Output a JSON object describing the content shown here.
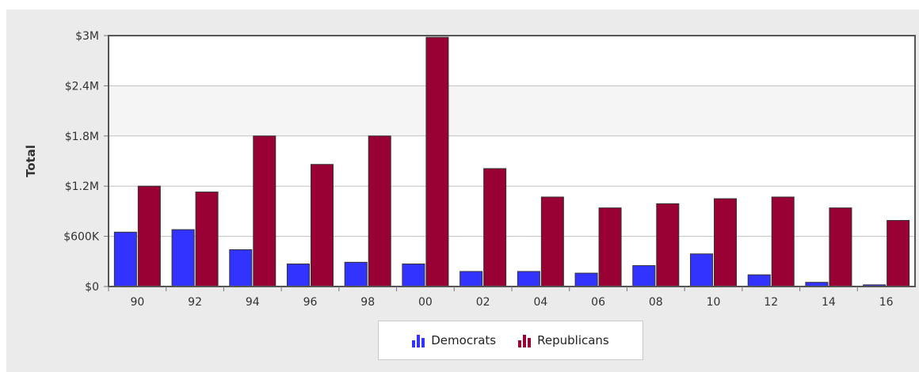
{
  "chart_data": {
    "type": "bar",
    "ylabel": "Total",
    "xlabel": "",
    "categories": [
      "90",
      "92",
      "94",
      "96",
      "98",
      "00",
      "02",
      "04",
      "06",
      "08",
      "10",
      "12",
      "14",
      "16"
    ],
    "ylim": [
      0,
      3000000
    ],
    "yticks": [
      {
        "value": 0,
        "label": "$0"
      },
      {
        "value": 600000,
        "label": "$600K"
      },
      {
        "value": 1200000,
        "label": "$1.2M"
      },
      {
        "value": 1800000,
        "label": "$1.8M"
      },
      {
        "value": 2400000,
        "label": "$2.4M"
      },
      {
        "value": 3000000,
        "label": "$3M"
      }
    ],
    "series": [
      {
        "name": "Democrats",
        "color": "#3333ff",
        "values": [
          650000,
          680000,
          440000,
          270000,
          290000,
          270000,
          180000,
          180000,
          160000,
          250000,
          390000,
          140000,
          50000,
          20000
        ]
      },
      {
        "name": "Republicans",
        "color": "#990033",
        "values": [
          1200000,
          1130000,
          1800000,
          1460000,
          1800000,
          2980000,
          1410000,
          1070000,
          940000,
          990000,
          1050000,
          1070000,
          940000,
          790000
        ]
      }
    ],
    "grid": true,
    "legend_position": "bottom-center"
  },
  "colors": {
    "panel_bg": "#ebebeb",
    "plot_bg": "#ffffff",
    "plot_band": "#f5f5f5",
    "gridline": "#c0c0c0",
    "plot_border": "#555555",
    "bar_outline": "#333333"
  },
  "legend": {
    "items": [
      {
        "label": "Democrats",
        "icon": "bar-chart-icon"
      },
      {
        "label": "Republicans",
        "icon": "bar-chart-icon"
      }
    ]
  }
}
